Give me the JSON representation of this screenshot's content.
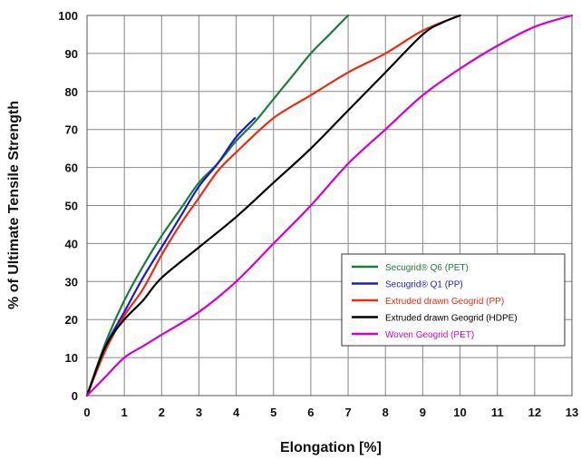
{
  "chart_data": {
    "type": "line",
    "title": "",
    "xlabel": "Elongation [%]",
    "ylabel": "% of Ultimate Tensile Strength",
    "xlim": [
      0,
      13
    ],
    "ylim": [
      0,
      100
    ],
    "xticks": [
      "0",
      "1",
      "2",
      "3",
      "4",
      "5",
      "6",
      "7",
      "8",
      "9",
      "10",
      "11",
      "12",
      "13"
    ],
    "yticks": [
      "0",
      "10",
      "20",
      "30",
      "40",
      "50",
      "60",
      "70",
      "80",
      "90",
      "100"
    ],
    "grid": true,
    "legend_position": "lower-right",
    "series": [
      {
        "name": "Secugrid® Q6 (PET)",
        "color": "#1e7d3c",
        "points": [
          [
            0,
            0
          ],
          [
            0.5,
            14
          ],
          [
            1,
            25
          ],
          [
            1.5,
            34
          ],
          [
            2,
            42
          ],
          [
            2.5,
            49
          ],
          [
            3,
            56
          ],
          [
            3.5,
            61
          ],
          [
            4,
            67
          ],
          [
            4.5,
            72
          ],
          [
            5,
            78
          ],
          [
            5.5,
            84
          ],
          [
            6,
            90
          ],
          [
            6.5,
            95
          ],
          [
            7,
            100
          ]
        ]
      },
      {
        "name": "Secugrid® Q1 (PP)",
        "color": "#1a1ad6",
        "points": [
          [
            0,
            0
          ],
          [
            0.5,
            13
          ],
          [
            1,
            22
          ],
          [
            1.5,
            31
          ],
          [
            2,
            39
          ],
          [
            2.5,
            47
          ],
          [
            3,
            55
          ],
          [
            3.5,
            61
          ],
          [
            4,
            68
          ],
          [
            4.5,
            73
          ]
        ]
      },
      {
        "name": "Extruded drawn Geogrid (PP)",
        "color": "#ee2b10",
        "points": [
          [
            0,
            0
          ],
          [
            0.5,
            12
          ],
          [
            1,
            21
          ],
          [
            1.5,
            28
          ],
          [
            2,
            37
          ],
          [
            2.5,
            45
          ],
          [
            3,
            52
          ],
          [
            3.5,
            59
          ],
          [
            4,
            64
          ],
          [
            5,
            73
          ],
          [
            6,
            79
          ],
          [
            7,
            85
          ],
          [
            8,
            90
          ],
          [
            9,
            96
          ],
          [
            10,
            100
          ]
        ]
      },
      {
        "name": "Extruded drawn Geogrid (HDPE)",
        "color": "#000000",
        "points": [
          [
            0,
            0
          ],
          [
            0.5,
            13
          ],
          [
            1,
            20
          ],
          [
            1.5,
            25
          ],
          [
            2,
            31
          ],
          [
            3,
            39
          ],
          [
            4,
            47
          ],
          [
            5,
            56
          ],
          [
            6,
            65
          ],
          [
            7,
            75
          ],
          [
            8,
            85
          ],
          [
            9,
            95
          ],
          [
            9.5,
            98
          ],
          [
            10,
            100
          ]
        ]
      },
      {
        "name": "Woven Geogrid (PET)",
        "color": "#d400d4",
        "points": [
          [
            0,
            0
          ],
          [
            0.5,
            5
          ],
          [
            1,
            10
          ],
          [
            1.5,
            13
          ],
          [
            2,
            16
          ],
          [
            3,
            22
          ],
          [
            4,
            30
          ],
          [
            5,
            40
          ],
          [
            6,
            50
          ],
          [
            7,
            61
          ],
          [
            8,
            70
          ],
          [
            9,
            79
          ],
          [
            10,
            86
          ],
          [
            11,
            92
          ],
          [
            12,
            97
          ],
          [
            13,
            100
          ]
        ]
      }
    ]
  }
}
